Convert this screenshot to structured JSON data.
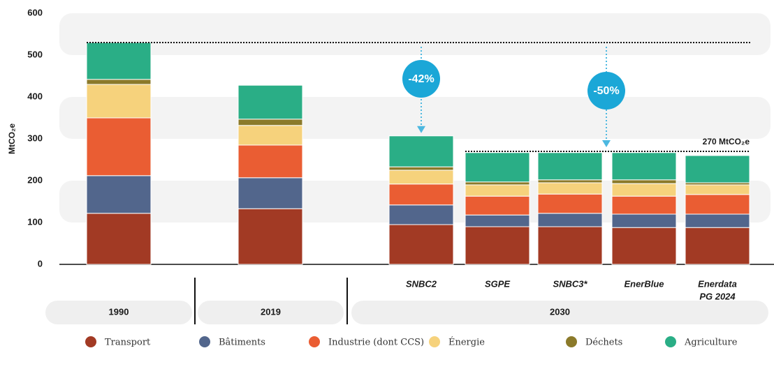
{
  "chart_data": {
    "type": "stacked_bar",
    "y_label": "MtCO₂e",
    "categories": [
      null,
      null,
      "SNBC2",
      "SGPE",
      "SNBC3*",
      "EnerBlue",
      [
        "Enerdata",
        "PG 2024"
      ]
    ],
    "groups": [
      "1990",
      "2019",
      "2030"
    ],
    "series": [
      {
        "name": "Transport",
        "color": "#a23a24",
        "values": [
          122,
          133,
          95,
          90,
          90,
          88,
          88
        ]
      },
      {
        "name": "Bâtiments",
        "color": "#52668c",
        "values": [
          90,
          74,
          47,
          28,
          32,
          32,
          32
        ]
      },
      {
        "name": "Industrie (dont CCS)",
        "color": "#ea5d33",
        "values": [
          138,
          78,
          50,
          45,
          46,
          43,
          47
        ]
      },
      {
        "name": "Énergie",
        "color": "#f6d27c",
        "values": [
          80,
          47,
          33,
          27,
          27,
          30,
          23
        ]
      },
      {
        "name": "Déchets",
        "color": "#8b7a2a",
        "values": [
          12,
          15,
          8,
          7,
          7,
          9,
          5
        ]
      },
      {
        "name": "Agriculture",
        "color": "#2aae86",
        "values": [
          88,
          81,
          74,
          70,
          65,
          65,
          65
        ]
      }
    ],
    "ylim": [
      0,
      600
    ],
    "yticks": [
      0,
      100,
      200,
      300,
      400,
      500,
      600
    ],
    "grid": "bands",
    "annotations": [
      {
        "text": "-42%"
      },
      {
        "text": "-50%"
      },
      {
        "text": "270 MtCO₂e",
        "value": 270
      }
    ],
    "legend": "bottom"
  }
}
